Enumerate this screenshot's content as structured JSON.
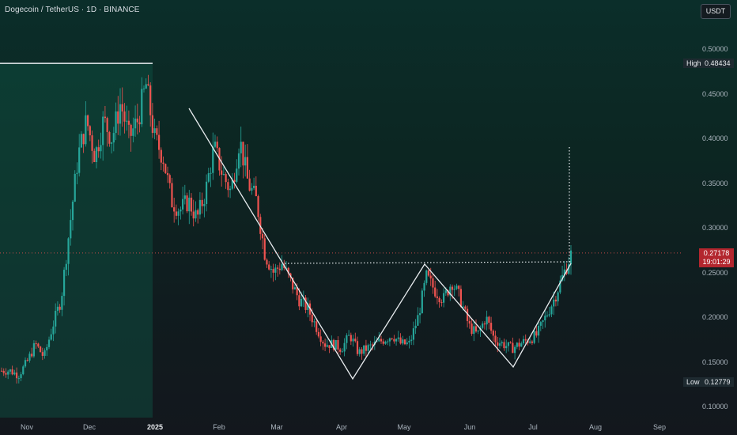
{
  "title": "Dogecoin / TetherUS · 1D · BINANCE",
  "currency_button": "USDT",
  "price_ticks": [
    "0.50000",
    "0.45000",
    "0.40000",
    "0.35000",
    "0.30000",
    "0.25000",
    "0.20000",
    "0.15000",
    "0.10000"
  ],
  "high": {
    "label": "High",
    "value": "0.48434"
  },
  "low": {
    "label": "Low",
    "value": "0.12779"
  },
  "current": {
    "price": "0.27178",
    "countdown": "19:01:29"
  },
  "months": [
    "Nov",
    "Dec",
    "2025",
    "Feb",
    "Mar",
    "Apr",
    "May",
    "Jun",
    "Jul",
    "Aug",
    "Sep"
  ],
  "colors": {
    "up": "#26a69a",
    "down": "#ef5350",
    "line": "#e8ecef",
    "price_line": "#ef5350"
  },
  "chart_data": {
    "type": "candlestick",
    "symbol": "DOGE/USDT",
    "interval": "1D",
    "ylim": [
      0.095,
      0.525
    ],
    "close_path": [
      0.14,
      0.14,
      0.135,
      0.15,
      0.17,
      0.155,
      0.19,
      0.22,
      0.3,
      0.38,
      0.42,
      0.38,
      0.42,
      0.4,
      0.44,
      0.4,
      0.42,
      0.46,
      0.4,
      0.38,
      0.33,
      0.32,
      0.33,
      0.31,
      0.34,
      0.39,
      0.36,
      0.34,
      0.4,
      0.35,
      0.33,
      0.27,
      0.25,
      0.26,
      0.24,
      0.22,
      0.21,
      0.19,
      0.17,
      0.17,
      0.165,
      0.18,
      0.16,
      0.165,
      0.17,
      0.175,
      0.18,
      0.17,
      0.17,
      0.2,
      0.245,
      0.23,
      0.22,
      0.24,
      0.22,
      0.19,
      0.18,
      0.2,
      0.175,
      0.17,
      0.165,
      0.17,
      0.175,
      0.18,
      0.2,
      0.22,
      0.245,
      0.27
    ],
    "high_marker": 0.48434,
    "low_marker": 0.12779,
    "last_price": 0.27178
  }
}
